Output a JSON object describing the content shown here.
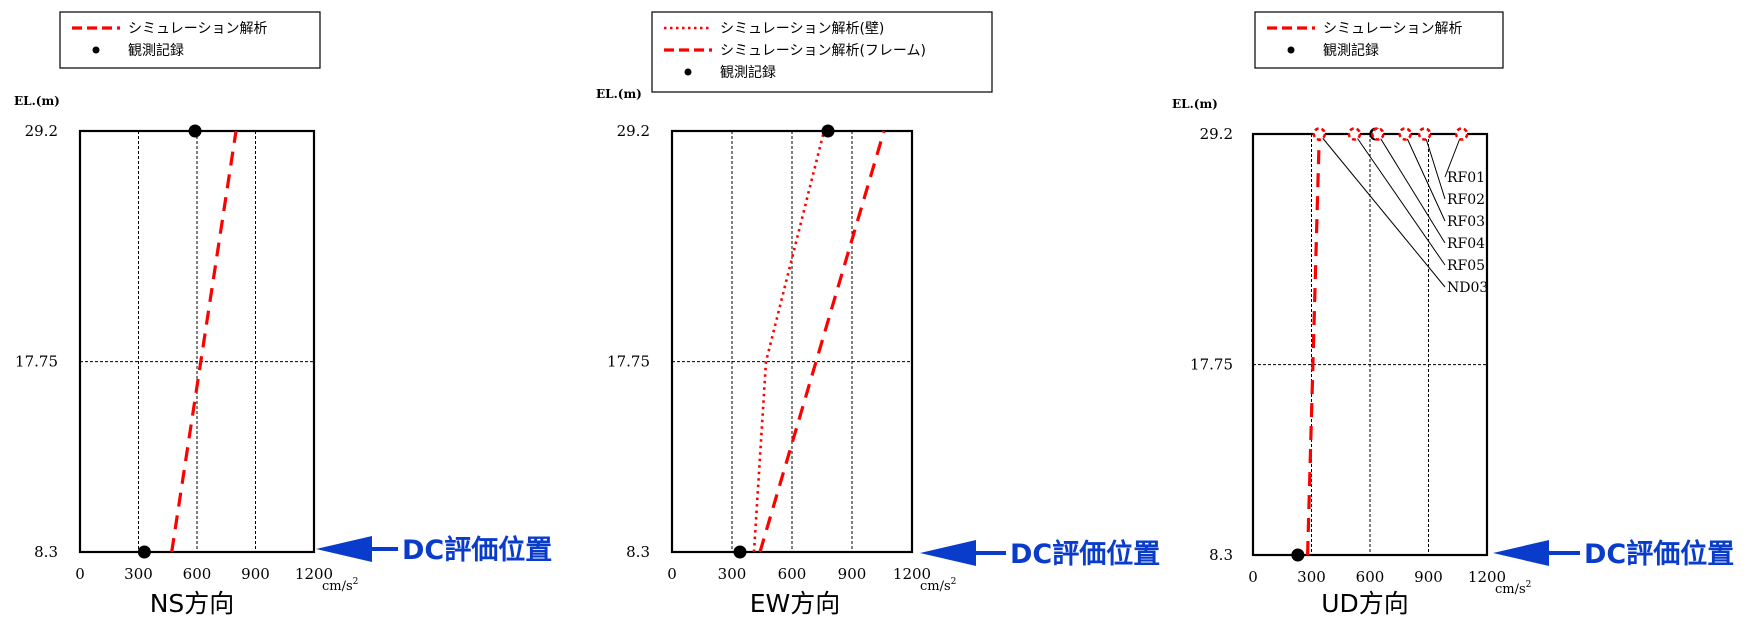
{
  "chart_data": [
    {
      "type": "line",
      "title": "NS方向",
      "ylabel": "EL.(m)",
      "xunit": "cm/s²",
      "xlim": [
        0,
        1200
      ],
      "ylim": [
        8.3,
        29.2
      ],
      "xticks": [
        0,
        300,
        600,
        900,
        1200
      ],
      "yticks": [
        8.3,
        17.75,
        29.2
      ],
      "legend": {
        "placement": "top-left",
        "entries": [
          "シミュレーション解析",
          "観測記録"
        ]
      },
      "series": [
        {
          "name": "シミュレーション解析",
          "style": "dashed",
          "color": "#ff0000",
          "x": [
            470,
            800
          ],
          "y": [
            8.3,
            29.2
          ]
        },
        {
          "name": "観測記録",
          "style": "marker",
          "color": "#000000",
          "x": [
            330,
            590
          ],
          "y": [
            8.3,
            29.2
          ]
        }
      ],
      "annotation": "DC評価位置"
    },
    {
      "type": "line",
      "title": "EW方向",
      "ylabel": "EL.(m)",
      "xunit": "cm/s²",
      "xlim": [
        0,
        1200
      ],
      "ylim": [
        8.3,
        29.2
      ],
      "xticks": [
        0,
        300,
        600,
        900,
        1200
      ],
      "yticks": [
        8.3,
        17.75,
        29.2
      ],
      "legend": {
        "placement": "top-left",
        "entries": [
          "シミュレーション解析(壁)",
          "シミュレーション解析(フレーム)",
          "観測記録"
        ]
      },
      "series": [
        {
          "name": "シミュレーション解析(壁)",
          "style": "dotted",
          "color": "#ff0000",
          "x": [
            410,
            470,
            760
          ],
          "y": [
            8.3,
            17.75,
            29.2
          ]
        },
        {
          "name": "シミュレーション解析(フレーム)",
          "style": "dashed",
          "color": "#ff0000",
          "x": [
            440,
            1060
          ],
          "y": [
            8.3,
            29.2
          ]
        },
        {
          "name": "観測記録",
          "style": "marker",
          "color": "#000000",
          "x": [
            340,
            780
          ],
          "y": [
            8.3,
            29.2
          ]
        }
      ],
      "annotation": "DC評価位置"
    },
    {
      "type": "line",
      "title": "UD方向",
      "ylabel": "EL.(m)",
      "xunit": "cm/s²",
      "xlim": [
        0,
        1200
      ],
      "ylim": [
        8.3,
        29.2
      ],
      "xticks": [
        0,
        300,
        600,
        900,
        1200
      ],
      "yticks": [
        8.3,
        17.75,
        29.2
      ],
      "legend": {
        "placement": "top-left",
        "entries": [
          "シミュレーション解析",
          "観測記録"
        ]
      },
      "series": [
        {
          "name": "シミュレーション解析",
          "style": "dashed",
          "color": "#ff0000",
          "x": [
            280,
            340
          ],
          "y": [
            8.3,
            29.2
          ]
        },
        {
          "name": "観測記録",
          "style": "marker",
          "color": "#000000",
          "x": [
            230,
            630
          ],
          "y": [
            8.3,
            29.2
          ]
        }
      ],
      "top_points": [
        {
          "label": "RF01",
          "x": 1070
        },
        {
          "label": "RF02",
          "x": 880
        },
        {
          "label": "RF03",
          "x": 780
        },
        {
          "label": "RF04",
          "x": 640
        },
        {
          "label": "RF05",
          "x": 520
        },
        {
          "label": "ND03",
          "x": 340
        }
      ],
      "annotation": "DC評価位置"
    }
  ]
}
